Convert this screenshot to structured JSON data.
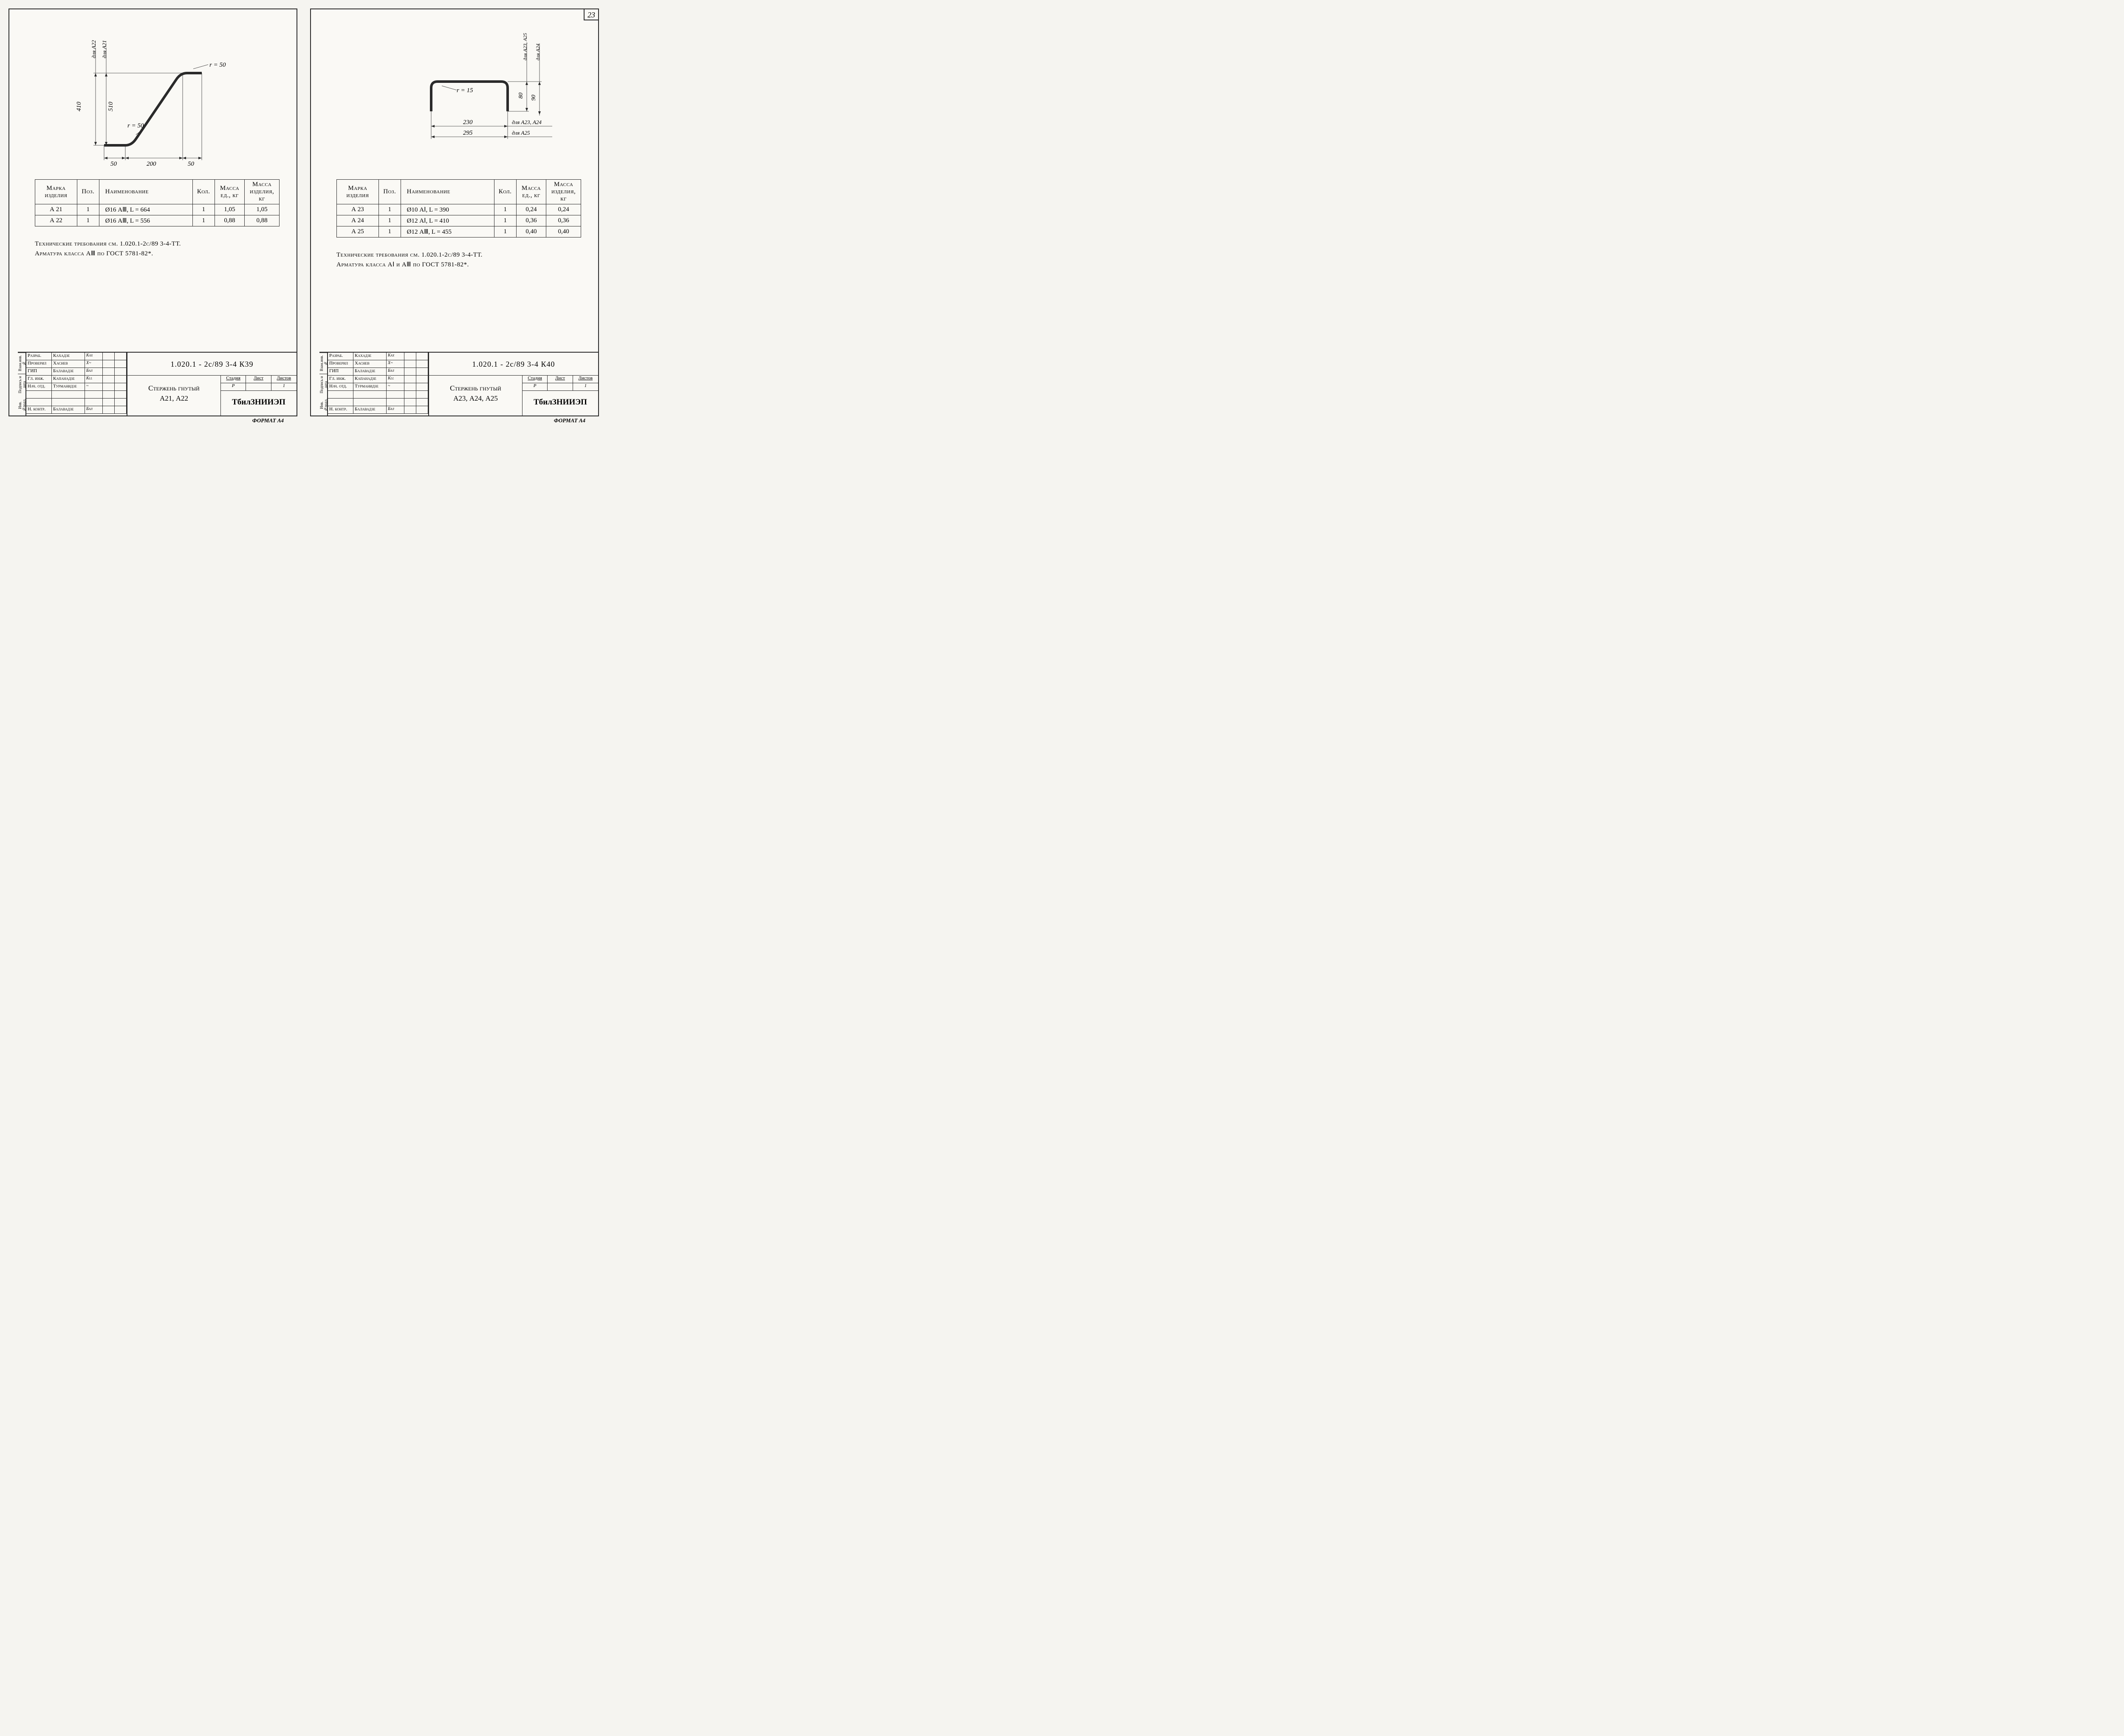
{
  "page_number": "23",
  "format_label": "ФОРМАТ А4",
  "sheets": [
    {
      "drawing": {
        "type": "bent-rod-z",
        "dim_h1": "410",
        "dim_h1_label": "для А22",
        "dim_h2": "510",
        "dim_h2_label": "для А21",
        "dim_b1": "50",
        "dim_b2": "200",
        "dim_b3": "50",
        "radius_label_top": "r = 50",
        "radius_label_bot": "r = 50",
        "line_color": "#2a2a2a"
      },
      "table": {
        "headers": {
          "mark": "Марка изделия",
          "pos": "Поз.",
          "name": "Наименование",
          "qty": "Кол.",
          "mass_unit": "Масса ед., кг",
          "mass_item": "Масса изделия, кг"
        },
        "rows": [
          {
            "mark": "А 21",
            "pos": "1",
            "name": "Ø16 АⅢ,   L = 664",
            "qty": "1",
            "mu": "1,05",
            "mi": "1,05"
          },
          {
            "mark": "А 22",
            "pos": "1",
            "name": "Ø16 АⅢ,   L = 556",
            "qty": "1",
            "mu": "0,88",
            "mi": "0,88"
          }
        ]
      },
      "notes": [
        "Технические требования см. 1.020.1-2с/89 3-4-ТТ.",
        "Арматура класса АⅢ по ГОСТ 5781-82*."
      ],
      "title_block": {
        "doc_num": "1.020.1 - 2с/89  3-4  К39",
        "part_name_l1": "Стержень гнутый",
        "part_name_l2": "А21, А22",
        "stage": "Р",
        "sheet": "",
        "sheets_total": "1",
        "stage_h": "Стадия",
        "sheet_h": "Лист",
        "sheets_h": "Листов",
        "org": "ТбилЗНИИЭП",
        "sign_rows": [
          {
            "role": "Разраб.",
            "name": "Кахадзе",
            "sig": "Kax"
          },
          {
            "role": "Проверил",
            "name": "Хаснев",
            "sig": "X~"
          },
          {
            "role": "ГИП",
            "name": "Балавадзе",
            "sig": "Бал"
          },
          {
            "role": "Гл. инж.",
            "name": "Капанадзе",
            "sig": "Kll"
          },
          {
            "role": "Нач. отд.",
            "name": "Турманидзе",
            "sig": "~"
          },
          {
            "role": "",
            "name": "",
            "sig": ""
          },
          {
            "role": "",
            "name": "",
            "sig": ""
          },
          {
            "role": "Н. контр.",
            "name": "Балавадзе",
            "sig": "Бал"
          }
        ],
        "side_labels": [
          "Взам.инв.№",
          "Подпись и дата",
          "Инв.№подл."
        ]
      }
    },
    {
      "drawing": {
        "type": "bent-rod-u",
        "dim_v1": "80",
        "dim_v1_label": "для А23, А25",
        "dim_v2": "90",
        "dim_v2_label": "для А24",
        "dim_w1": "230",
        "dim_w1_label": "для А23, А24",
        "dim_w2": "295",
        "dim_w2_label": "для А25",
        "radius_label": "r = 15",
        "line_color": "#2a2a2a"
      },
      "table": {
        "headers": {
          "mark": "Марка изделия",
          "pos": "Поз.",
          "name": "Наименование",
          "qty": "Кол.",
          "mass_unit": "Масса ед., кг",
          "mass_item": "Масса изделия, кг"
        },
        "rows": [
          {
            "mark": "А 23",
            "pos": "1",
            "name": "Ø10 АⅠ,   L = 390",
            "qty": "1",
            "mu": "0,24",
            "mi": "0,24"
          },
          {
            "mark": "А 24",
            "pos": "1",
            "name": "Ø12 АⅠ,   L = 410",
            "qty": "1",
            "mu": "0,36",
            "mi": "0,36"
          },
          {
            "mark": "А 25",
            "pos": "1",
            "name": "Ø12 АⅢ,   L = 455",
            "qty": "1",
            "mu": "0,40",
            "mi": "0,40"
          }
        ]
      },
      "notes": [
        "Технические требования см. 1.020.1-2с/89 3-4-ТТ.",
        "Арматура класса АⅠ и АⅢ по ГОСТ 5781-82*."
      ],
      "title_block": {
        "doc_num": "1.020.1 - 2с/89  3-4  К40",
        "part_name_l1": "Стержень гнутый",
        "part_name_l2": "А23, А24, А25",
        "stage": "Р",
        "sheet": "",
        "sheets_total": "1",
        "stage_h": "Стадия",
        "sheet_h": "Лист",
        "sheets_h": "Листов",
        "org": "ТбилЗНИИЭП",
        "sign_rows": [
          {
            "role": "Разраб.",
            "name": "Кахадзе",
            "sig": "Kax"
          },
          {
            "role": "Проверил",
            "name": "Хаснев",
            "sig": "X~"
          },
          {
            "role": "ГИП",
            "name": "Балавадзе",
            "sig": "Бал"
          },
          {
            "role": "Гл. инж.",
            "name": "Капанадзе",
            "sig": "Kll"
          },
          {
            "role": "Нач. отд.",
            "name": "Турманидзе",
            "sig": "~"
          },
          {
            "role": "",
            "name": "",
            "sig": ""
          },
          {
            "role": "",
            "name": "",
            "sig": ""
          },
          {
            "role": "Н. контр.",
            "name": "Балавадзе",
            "sig": "Бал"
          }
        ],
        "side_labels": [
          "Взам.инв.№",
          "Подпись и дата",
          "Инв.№подл."
        ]
      }
    }
  ]
}
